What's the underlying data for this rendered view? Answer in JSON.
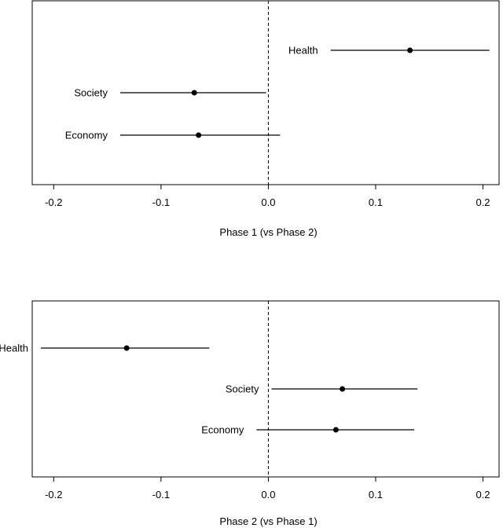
{
  "chart_data": [
    {
      "type": "scatter",
      "subtype": "forest-plot (point estimate with confidence interval)",
      "xlabel": "Phase 1 (vs Phase 2)",
      "xlim": [
        -0.22,
        0.215
      ],
      "xticks": [
        -0.2,
        -0.1,
        0.0,
        0.1,
        0.2
      ],
      "xtick_labels": [
        "-0.2",
        "-0.1",
        "0.0",
        "0.1",
        "0.2"
      ],
      "reference_line": {
        "x": 0,
        "style": "dashed"
      },
      "categories": [
        "Health",
        "Society",
        "Economy"
      ],
      "estimates": [
        0.132,
        -0.069,
        -0.065
      ],
      "ci_lower": [
        0.058,
        -0.138,
        -0.138
      ],
      "ci_upper": [
        0.206,
        -0.002,
        0.011
      ],
      "grid": false
    },
    {
      "type": "scatter",
      "subtype": "forest-plot (point estimate with confidence interval)",
      "xlabel": "Phase 2 (vs Phase 1)",
      "xlim": [
        -0.22,
        0.215
      ],
      "xticks": [
        -0.2,
        -0.1,
        0.0,
        0.1,
        0.2
      ],
      "xtick_labels": [
        "-0.2",
        "-0.1",
        "0.0",
        "0.1",
        "0.2"
      ],
      "reference_line": {
        "x": 0,
        "style": "dashed"
      },
      "categories": [
        "Health",
        "Society",
        "Economy"
      ],
      "estimates": [
        -0.132,
        0.069,
        0.063
      ],
      "ci_lower": [
        -0.212,
        0.003,
        -0.011
      ],
      "ci_upper": [
        -0.055,
        0.139,
        0.136
      ],
      "grid": false
    }
  ]
}
